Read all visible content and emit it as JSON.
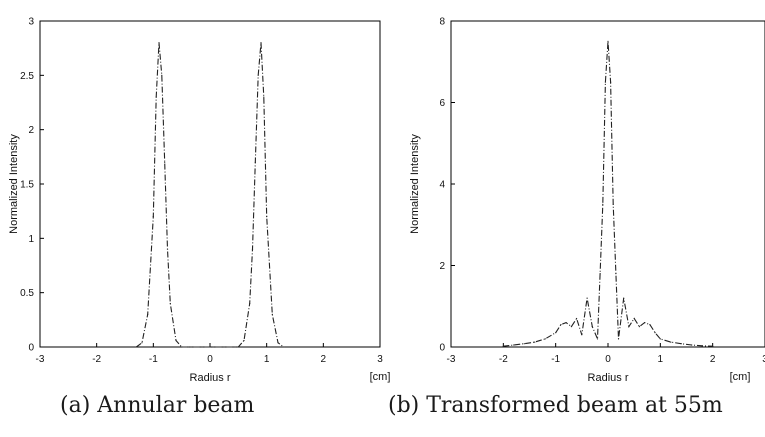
{
  "chart_data": [
    {
      "type": "line",
      "xlabel": "Radius r",
      "ylabel": "Normalized Intensity",
      "unit": "[cm]",
      "xlim": [
        -3,
        3
      ],
      "ylim": [
        0,
        3
      ],
      "xticks": [
        "-3",
        "-2",
        "-1",
        "0",
        "1",
        "2",
        "3"
      ],
      "yticks": [
        "0",
        "0.5",
        "1",
        "1.5",
        "2",
        "2.5",
        "3"
      ],
      "caption": "(a) Annular beam",
      "series": [
        {
          "x": [
            -1.3,
            -1.2,
            -1.1,
            -1.0,
            -0.95,
            -0.9,
            -0.85,
            -0.8,
            -0.75,
            -0.7,
            -0.6,
            -0.5,
            -0.4,
            0.4,
            0.5,
            0.6,
            0.7,
            0.75,
            0.8,
            0.85,
            0.9,
            0.95,
            1.0,
            1.1,
            1.2,
            1.3
          ],
          "y": [
            0.0,
            0.04,
            0.3,
            1.2,
            2.3,
            2.8,
            2.5,
            1.7,
            0.9,
            0.4,
            0.06,
            0.0,
            0.0,
            0.0,
            0.0,
            0.06,
            0.4,
            0.9,
            1.7,
            2.5,
            2.8,
            2.3,
            1.2,
            0.3,
            0.04,
            0.0
          ]
        }
      ]
    },
    {
      "type": "line",
      "xlabel": "Radius r",
      "ylabel": "Normalized Intensity",
      "unit": "[cm]",
      "xlim": [
        -3,
        3
      ],
      "ylim": [
        0,
        8
      ],
      "xticks": [
        "-3",
        "-2",
        "-1",
        "0",
        "1",
        "2",
        "3"
      ],
      "yticks": [
        "0",
        "2",
        "4",
        "6",
        "8"
      ],
      "caption": "(b) Transformed beam at 55m",
      "series": [
        {
          "x": [
            -2.0,
            -1.8,
            -1.6,
            -1.4,
            -1.2,
            -1.0,
            -0.9,
            -0.8,
            -0.7,
            -0.6,
            -0.5,
            -0.4,
            -0.3,
            -0.2,
            -0.15,
            -0.1,
            -0.05,
            0.0,
            0.05,
            0.1,
            0.15,
            0.2,
            0.3,
            0.4,
            0.5,
            0.6,
            0.7,
            0.8,
            0.9,
            1.0,
            1.2,
            1.4,
            1.6,
            1.8,
            2.0
          ],
          "y": [
            0.02,
            0.05,
            0.08,
            0.12,
            0.2,
            0.35,
            0.55,
            0.6,
            0.5,
            0.7,
            0.3,
            1.2,
            0.5,
            0.2,
            1.8,
            3.5,
            6.5,
            7.5,
            6.5,
            3.5,
            1.8,
            0.2,
            1.2,
            0.5,
            0.7,
            0.5,
            0.6,
            0.55,
            0.35,
            0.2,
            0.12,
            0.08,
            0.05,
            0.03,
            0.02
          ]
        }
      ]
    }
  ]
}
